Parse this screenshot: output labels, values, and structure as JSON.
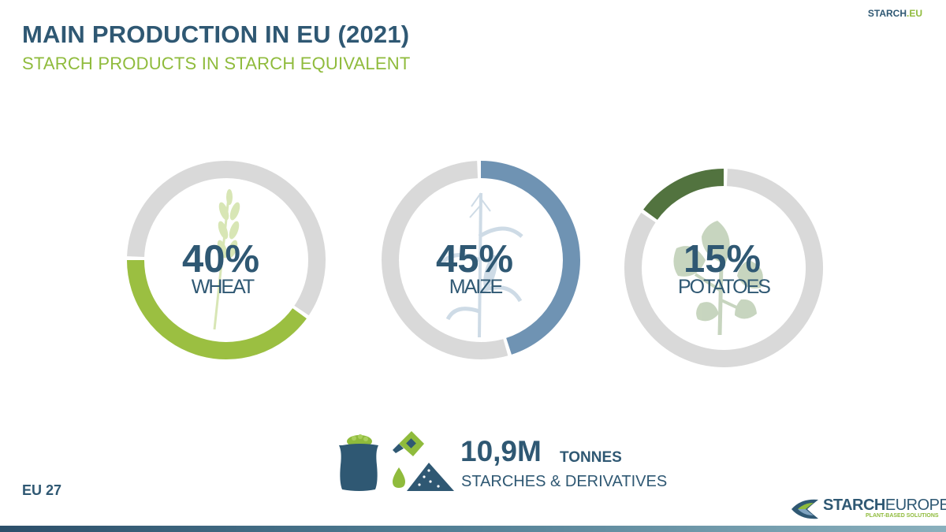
{
  "header": {
    "title": "MAIN PRODUCTION IN EU (2021)",
    "subtitle": "STARCH PRODUCTS IN STARCH EQUIVALENT",
    "site_main": "STARCH",
    "site_suffix": ".EU"
  },
  "chart_data": {
    "type": "pie",
    "subtype": "donut",
    "series": [
      {
        "name": "WHEAT",
        "value": 40,
        "label": "40%",
        "color": "#9bbf41"
      },
      {
        "name": "MAIZE",
        "value": 45,
        "label": "45%",
        "color": "#6f93b3"
      },
      {
        "name": "POTATOES",
        "value": 15,
        "label": "15%",
        "color": "#52733f"
      }
    ],
    "track_color": "#d9d9d9"
  },
  "summary": {
    "total": "10,9M",
    "unit": "TONNES",
    "description": "STARCHES & DERIVATIVES",
    "icons": [
      "grain-sack-icon",
      "syrup-bottle-icon",
      "liquid-drop-icon",
      "starch-powder-icon"
    ]
  },
  "footer": {
    "region": "EU 27",
    "logo_name_bold": "STARCH",
    "logo_name_light": "EUROPE",
    "logo_tagline": "PLANT-BASED SOLUTIONS",
    "bar_colors": [
      "#2c4f6a",
      "#8ab0bd"
    ]
  }
}
